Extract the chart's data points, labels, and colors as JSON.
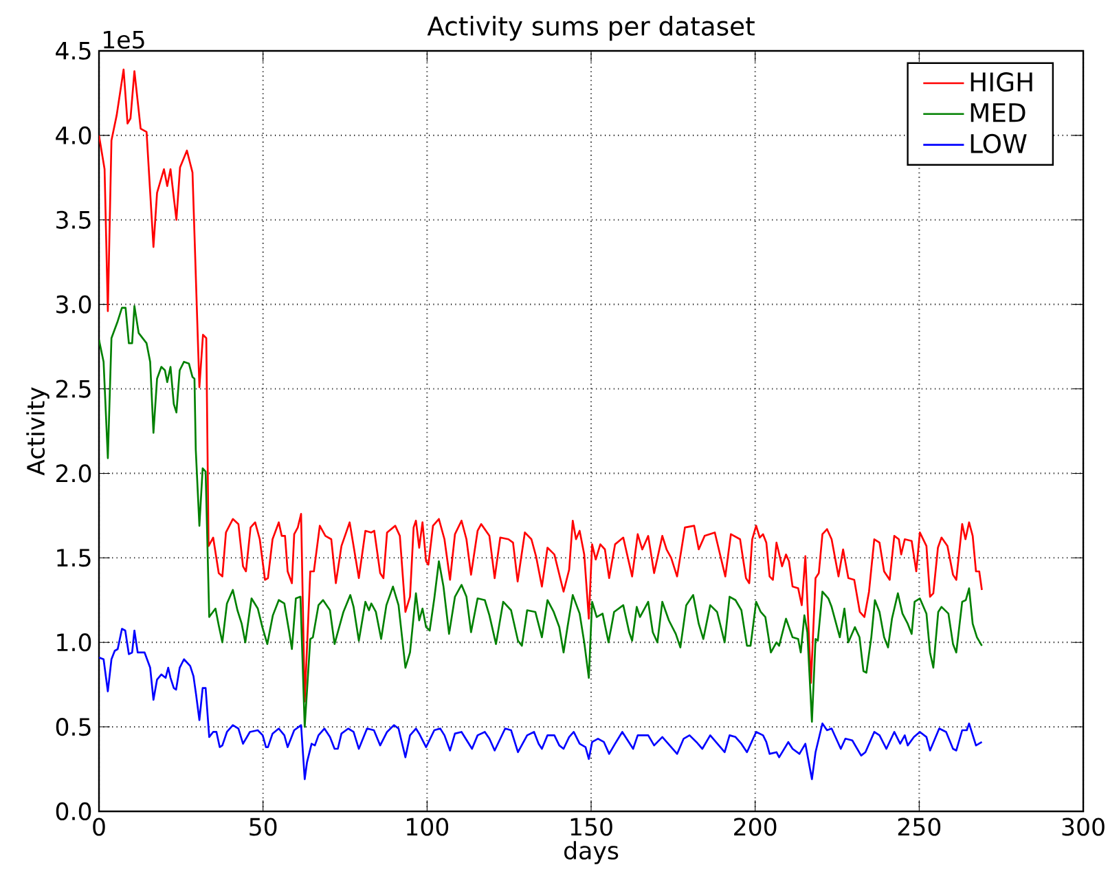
{
  "chart_data": {
    "type": "line",
    "title": "Activity sums per dataset",
    "xlabel": "days",
    "ylabel": "Activity",
    "annotations": [
      "1e5"
    ],
    "xlim": [
      0,
      300
    ],
    "xticks": [
      0,
      50,
      100,
      150,
      200,
      250,
      300
    ],
    "ylim": [
      0,
      4.5
    ],
    "yticks": [
      {
        "value": 0,
        "label": "0.0"
      },
      {
        "value": 0.5,
        "label": "0.5"
      },
      {
        "value": 1,
        "label": "1.0"
      },
      {
        "value": 1.5,
        "label": "1.5"
      },
      {
        "value": 2,
        "label": "2.0"
      },
      {
        "value": 2.5,
        "label": "2.5"
      },
      {
        "value": 3,
        "label": "3.0"
      },
      {
        "value": 3.5,
        "label": "3.5"
      },
      {
        "value": 4,
        "label": "4.0"
      },
      {
        "value": 4.5,
        "label": "4.5"
      }
    ],
    "grid": true,
    "legend": "top right",
    "series": [
      {
        "name": "HIGH",
        "color": "#ff0000",
        "x": [
          0,
          1.7,
          2.7,
          3.8,
          5.4,
          7.5,
          8.7,
          9.6,
          10.8,
          12.7,
          14.5,
          16.6,
          17.7,
          19.8,
          20.8,
          21.8,
          23.6,
          24.7,
          26.8,
          28.5,
          30.6,
          31.7,
          32.7,
          33.4,
          34.8,
          36.5,
          37.6,
          38.7,
          40.8,
          42.5,
          43.9,
          44.8,
          46.2,
          47.6,
          49,
          50.6,
          51.5,
          52.9,
          54.8,
          55.7,
          56.7,
          57.5,
          58.8,
          59.5,
          60.6,
          61.6,
          62.7,
          64.4,
          65.5,
          67.3,
          69,
          70.8,
          72.2,
          73.9,
          76.4,
          77.6,
          79.2,
          81.2,
          83,
          83.9,
          85.7,
          86.7,
          87.8,
          90.3,
          91.7,
          93.4,
          94.8,
          95.9,
          96.6,
          97.6,
          98.6,
          99.7,
          100.4,
          101.8,
          103.6,
          105.3,
          107,
          108.5,
          110.5,
          112,
          113.4,
          115.4,
          116.5,
          119,
          120.6,
          122.3,
          124.8,
          126.2,
          127.6,
          129.8,
          131.8,
          133.2,
          135,
          136.7,
          138.8,
          141.6,
          143.3,
          144.4,
          145.4,
          146.5,
          147.9,
          149.3,
          150.3,
          151.4,
          152.8,
          154.2,
          155.5,
          157.3,
          159.8,
          162.5,
          164.2,
          165.6,
          167.4,
          169.2,
          171.7,
          173,
          174.4,
          176.2,
          178.6,
          181.4,
          182.8,
          184.6,
          187.7,
          190.9,
          192.6,
          195.4,
          197.2,
          198.2,
          199.1,
          200.3,
          201.4,
          202.4,
          203.4,
          204.4,
          205.4,
          206.5,
          208.2,
          209.4,
          210.3,
          211.4,
          213.1,
          214.2,
          215.3,
          217,
          218.4,
          219.4,
          220.5,
          221.9,
          223.3,
          225.4,
          226.8,
          228.4,
          230.2,
          231.9,
          233.3,
          234.7,
          236.3,
          237.9,
          239.3,
          241,
          242.4,
          243.8,
          244.5,
          245.6,
          247.7,
          249.1,
          250.2,
          252.2,
          253.3,
          254.3,
          255.7,
          256.8,
          258.6,
          260.3,
          261.3,
          263.1,
          264.1,
          265.2,
          266.3,
          267.3,
          268.3,
          269.1
        ],
        "values": [
          4.0,
          3.8,
          2.96,
          3.97,
          4.12,
          4.39,
          4.07,
          4.1,
          4.38,
          4.04,
          4.02,
          3.34,
          3.66,
          3.8,
          3.7,
          3.8,
          3.5,
          3.81,
          3.91,
          3.78,
          2.51,
          2.82,
          2.8,
          1.57,
          1.62,
          1.41,
          1.39,
          1.65,
          1.73,
          1.7,
          1.45,
          1.42,
          1.68,
          1.71,
          1.61,
          1.37,
          1.38,
          1.61,
          1.71,
          1.63,
          1.63,
          1.42,
          1.35,
          1.64,
          1.68,
          1.76,
          0.65,
          1.42,
          1.42,
          1.69,
          1.63,
          1.61,
          1.35,
          1.57,
          1.71,
          1.57,
          1.38,
          1.66,
          1.65,
          1.66,
          1.41,
          1.38,
          1.65,
          1.69,
          1.63,
          1.18,
          1.27,
          1.68,
          1.72,
          1.56,
          1.71,
          1.48,
          1.46,
          1.69,
          1.73,
          1.61,
          1.37,
          1.64,
          1.72,
          1.61,
          1.4,
          1.66,
          1.7,
          1.63,
          1.38,
          1.62,
          1.61,
          1.59,
          1.36,
          1.65,
          1.61,
          1.51,
          1.33,
          1.56,
          1.52,
          1.3,
          1.43,
          1.72,
          1.61,
          1.66,
          1.52,
          1.14,
          1.58,
          1.49,
          1.58,
          1.55,
          1.38,
          1.58,
          1.62,
          1.39,
          1.64,
          1.55,
          1.63,
          1.41,
          1.63,
          1.55,
          1.5,
          1.39,
          1.68,
          1.69,
          1.55,
          1.63,
          1.65,
          1.39,
          1.64,
          1.61,
          1.38,
          1.35,
          1.61,
          1.69,
          1.62,
          1.64,
          1.59,
          1.39,
          1.37,
          1.59,
          1.45,
          1.52,
          1.48,
          1.33,
          1.32,
          1.22,
          1.51,
          0.76,
          1.38,
          1.41,
          1.64,
          1.67,
          1.61,
          1.39,
          1.55,
          1.38,
          1.37,
          1.18,
          1.15,
          1.3,
          1.61,
          1.59,
          1.42,
          1.37,
          1.63,
          1.61,
          1.52,
          1.61,
          1.6,
          1.42,
          1.65,
          1.57,
          1.27,
          1.29,
          1.56,
          1.62,
          1.57,
          1.4,
          1.37,
          1.7,
          1.61,
          1.71,
          1.63,
          1.42,
          1.42,
          1.31
        ]
      },
      {
        "name": "MED",
        "color": "#008000",
        "x": [
          0,
          1.4,
          2.7,
          3.8,
          5.7,
          7,
          8.1,
          9.1,
          10.1,
          10.8,
          12.1,
          14.5,
          15.6,
          16.6,
          17.7,
          19,
          20.1,
          20.8,
          21.8,
          22.8,
          23.6,
          24.6,
          25.9,
          27.4,
          28.5,
          29.1,
          29.5,
          30.6,
          31.6,
          32.5,
          33.6,
          35.5,
          36.5,
          37.6,
          39,
          40.8,
          42.2,
          43.5,
          44.6,
          46.5,
          48.4,
          49.8,
          51.3,
          53,
          54.8,
          56.5,
          57.9,
          58.8,
          60,
          61.4,
          62.7,
          64.4,
          65.2,
          66.9,
          68.3,
          70.4,
          71.8,
          74.5,
          76.6,
          77.6,
          79.2,
          81.2,
          82.3,
          83,
          84.4,
          86,
          87.6,
          89.6,
          91.3,
          93.4,
          94.8,
          96.6,
          97.6,
          98.6,
          99.7,
          100.8,
          102.2,
          103.6,
          105,
          106.7,
          108.5,
          110.5,
          112,
          113.4,
          115.4,
          117.6,
          119,
          121,
          123.2,
          125.6,
          127.7,
          128.9,
          130.5,
          133,
          135,
          136.7,
          138.6,
          140.3,
          141.6,
          142.8,
          144.4,
          146.5,
          147.9,
          149.3,
          150.3,
          151.7,
          153.5,
          155.3,
          157,
          159.8,
          161.6,
          162.5,
          163.9,
          164.9,
          167.4,
          168.8,
          170.2,
          171.7,
          173.7,
          175.8,
          177.2,
          179,
          181.1,
          182.8,
          184.2,
          186.3,
          188.4,
          190.7,
          192.2,
          194,
          195.8,
          197.5,
          198.6,
          200.3,
          201.7,
          203.1,
          204.8,
          206.5,
          207.3,
          209.4,
          211.4,
          213.1,
          213.9,
          215,
          215.9,
          217.3,
          218.4,
          219.1,
          220.5,
          222.3,
          223.3,
          225.8,
          227.2,
          228.4,
          230.4,
          231.8,
          233,
          233.9,
          235.4,
          236.5,
          237.9,
          239.3,
          240.5,
          241.7,
          243.5,
          244.9,
          246.5,
          247.7,
          248.6,
          250.2,
          252.2,
          253.3,
          254.3,
          255.8,
          256.8,
          258.9,
          260.3,
          261.3,
          263.1,
          264.2,
          265.2,
          266.3,
          267.6,
          269.1
        ],
        "values": [
          2.79,
          2.66,
          2.09,
          2.8,
          2.9,
          2.98,
          2.98,
          2.77,
          2.77,
          2.99,
          2.83,
          2.77,
          2.66,
          2.24,
          2.56,
          2.63,
          2.61,
          2.54,
          2.63,
          2.41,
          2.36,
          2.61,
          2.66,
          2.65,
          2.57,
          2.56,
          2.14,
          1.69,
          2.03,
          2.01,
          1.15,
          1.2,
          1.1,
          1.0,
          1.23,
          1.31,
          1.19,
          1.11,
          1.0,
          1.26,
          1.2,
          1.09,
          0.99,
          1.16,
          1.25,
          1.23,
          1.07,
          0.96,
          1.26,
          1.27,
          0.5,
          1.02,
          1.03,
          1.22,
          1.25,
          1.19,
          0.99,
          1.18,
          1.28,
          1.21,
          1.01,
          1.24,
          1.19,
          1.23,
          1.18,
          1.02,
          1.22,
          1.33,
          1.22,
          0.85,
          0.94,
          1.29,
          1.13,
          1.2,
          1.09,
          1.07,
          1.26,
          1.48,
          1.33,
          1.05,
          1.27,
          1.34,
          1.27,
          1.06,
          1.26,
          1.25,
          1.16,
          0.99,
          1.24,
          1.19,
          1.01,
          0.98,
          1.19,
          1.18,
          1.03,
          1.25,
          1.18,
          1.09,
          0.94,
          1.09,
          1.28,
          1.17,
          1.0,
          0.79,
          1.24,
          1.15,
          1.17,
          1.0,
          1.18,
          1.22,
          1.06,
          1.01,
          1.21,
          1.15,
          1.24,
          1.06,
          1.0,
          1.24,
          1.13,
          1.05,
          0.97,
          1.22,
          1.28,
          1.11,
          1.02,
          1.22,
          1.18,
          1.0,
          1.27,
          1.25,
          1.19,
          0.98,
          0.98,
          1.24,
          1.18,
          1.15,
          0.94,
          1.0,
          0.98,
          1.14,
          1.03,
          1.02,
          0.94,
          1.16,
          1.06,
          0.53,
          1.02,
          1.01,
          1.3,
          1.26,
          1.21,
          1.03,
          1.2,
          1.0,
          1.09,
          1.03,
          0.83,
          0.82,
          1.03,
          1.25,
          1.18,
          1.03,
          0.97,
          1.14,
          1.29,
          1.17,
          1.11,
          1.05,
          1.24,
          1.26,
          1.17,
          0.94,
          0.85,
          1.18,
          1.21,
          1.17,
          0.99,
          0.94,
          1.24,
          1.25,
          1.32,
          1.11,
          1.03,
          0.98
        ]
      },
      {
        "name": "LOW",
        "color": "#0000ff",
        "x": [
          0,
          1.4,
          2.7,
          3.8,
          4.8,
          5.7,
          7,
          8,
          9.1,
          10.1,
          10.8,
          11.8,
          13.9,
          15.6,
          16.6,
          17.7,
          19,
          20.3,
          21.1,
          21.8,
          22.8,
          23.5,
          24.6,
          25.9,
          27.8,
          28.8,
          29.6,
          30.6,
          31.6,
          32.5,
          33.6,
          34.8,
          35.8,
          36.8,
          37.6,
          39,
          40.8,
          42.5,
          43.9,
          46,
          48.4,
          49.9,
          50.9,
          51.5,
          52.9,
          54.8,
          56.5,
          57.5,
          59.5,
          61.6,
          62.7,
          63.4,
          64.8,
          65.8,
          66.9,
          68.7,
          70.4,
          71.8,
          72.8,
          73.9,
          76,
          77.6,
          79.2,
          81.7,
          83.8,
          85.7,
          87.8,
          89.9,
          91.3,
          93.4,
          94.8,
          96.6,
          97.6,
          99.7,
          102.2,
          104,
          105.3,
          107,
          108.5,
          110.5,
          113.7,
          115.4,
          117.6,
          119,
          120.6,
          123.8,
          125.6,
          127.7,
          130.5,
          132.6,
          134,
          135,
          136.7,
          138.8,
          140.3,
          141.6,
          143.3,
          144.7,
          146.5,
          148.3,
          149.3,
          150.3,
          152.1,
          153.9,
          155.5,
          157.3,
          159.5,
          162.8,
          164.2,
          167.4,
          169.2,
          171.7,
          173.5,
          176.2,
          178.2,
          180,
          182.1,
          183.9,
          186.3,
          190.7,
          192.2,
          194,
          195.8,
          197.5,
          200.3,
          202.4,
          203.4,
          204.4,
          206.5,
          207.3,
          210.1,
          211.4,
          213.5,
          215.3,
          217.3,
          218.4,
          220.5,
          221.9,
          223.3,
          226.1,
          227.5,
          229.6,
          232.3,
          233.6,
          236.3,
          237.9,
          240,
          242.4,
          244.2,
          245.6,
          246.5,
          248.4,
          250.2,
          252.2,
          253.3,
          256.1,
          258.2,
          260.3,
          261.3,
          263.1,
          264.5,
          265.2,
          267.3,
          269.1
        ],
        "values": [
          0.91,
          0.9,
          0.71,
          0.9,
          0.95,
          0.96,
          1.08,
          1.07,
          0.93,
          0.94,
          1.07,
          0.94,
          0.94,
          0.85,
          0.66,
          0.78,
          0.81,
          0.79,
          0.85,
          0.79,
          0.73,
          0.72,
          0.85,
          0.9,
          0.86,
          0.8,
          0.69,
          0.54,
          0.73,
          0.73,
          0.44,
          0.47,
          0.47,
          0.38,
          0.39,
          0.47,
          0.51,
          0.49,
          0.4,
          0.47,
          0.48,
          0.45,
          0.38,
          0.38,
          0.46,
          0.49,
          0.45,
          0.38,
          0.48,
          0.51,
          0.19,
          0.29,
          0.4,
          0.39,
          0.45,
          0.49,
          0.44,
          0.37,
          0.37,
          0.46,
          0.49,
          0.47,
          0.37,
          0.49,
          0.48,
          0.39,
          0.47,
          0.51,
          0.49,
          0.32,
          0.45,
          0.49,
          0.46,
          0.38,
          0.48,
          0.49,
          0.45,
          0.36,
          0.46,
          0.47,
          0.37,
          0.45,
          0.47,
          0.43,
          0.36,
          0.49,
          0.48,
          0.35,
          0.45,
          0.47,
          0.4,
          0.37,
          0.45,
          0.45,
          0.39,
          0.37,
          0.44,
          0.47,
          0.4,
          0.38,
          0.31,
          0.41,
          0.43,
          0.41,
          0.34,
          0.4,
          0.47,
          0.37,
          0.45,
          0.45,
          0.39,
          0.44,
          0.4,
          0.34,
          0.43,
          0.45,
          0.41,
          0.37,
          0.45,
          0.35,
          0.45,
          0.44,
          0.4,
          0.35,
          0.47,
          0.45,
          0.41,
          0.34,
          0.35,
          0.32,
          0.41,
          0.37,
          0.34,
          0.4,
          0.19,
          0.35,
          0.52,
          0.48,
          0.49,
          0.37,
          0.43,
          0.42,
          0.33,
          0.35,
          0.47,
          0.45,
          0.37,
          0.47,
          0.4,
          0.45,
          0.39,
          0.44,
          0.47,
          0.44,
          0.36,
          0.49,
          0.47,
          0.37,
          0.36,
          0.48,
          0.48,
          0.52,
          0.39,
          0.41
        ]
      }
    ]
  }
}
